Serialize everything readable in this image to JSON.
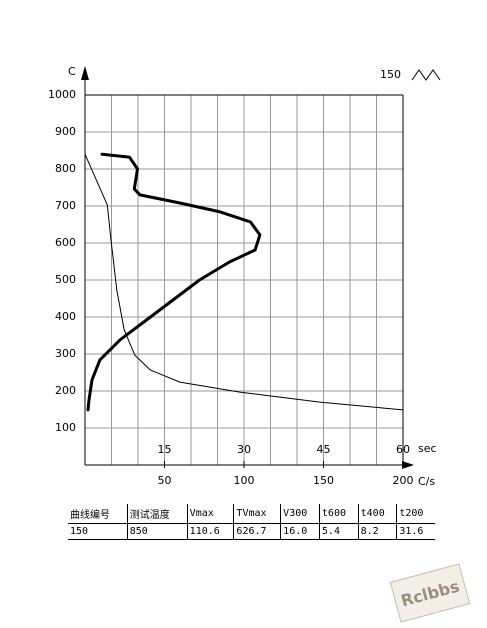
{
  "chart_data": {
    "type": "line",
    "y_label": "C",
    "x_label": "sec",
    "x2_label": "C/s",
    "ylim": [
      0,
      1000
    ],
    "yticks": [
      100,
      200,
      300,
      400,
      500,
      600,
      700,
      800,
      900,
      1000
    ],
    "xlim": [
      0,
      60
    ],
    "xticks": [
      15,
      30,
      45,
      60
    ],
    "x2lim": [
      0,
      200
    ],
    "x2ticks": [
      50,
      100,
      150,
      200
    ],
    "grid": true,
    "series": [
      {
        "name": "150",
        "color": "#000000",
        "width": 1,
        "x": [
          0,
          2.1,
          4.2,
          4.9,
          6,
          7.4,
          9.4,
          12.3,
          17.9,
          29.2,
          44.3,
          60
        ],
        "values": [
          840,
          772,
          703,
          608,
          473,
          365,
          297,
          257,
          224,
          197,
          170,
          149
        ]
      },
      {
        "color": "#000000",
        "width": 3,
        "axis": "x2",
        "x": [
          10.7,
          28,
          33,
          31,
          34.6,
          59.7,
          85,
          104,
          110,
          107,
          91,
          72,
          47,
          22,
          9.4,
          4.4,
          2.5,
          1.9
        ],
        "values": [
          840,
          832,
          800,
          746,
          730,
          708,
          684,
          657,
          622,
          581,
          549,
          500,
          419,
          338,
          284,
          230,
          176,
          149
        ]
      }
    ]
  },
  "table": {
    "headers": [
      "曲线编号",
      "测试温度",
      "Vmax",
      "TVmax",
      "V300",
      "t600",
      "t400",
      "t200"
    ],
    "rows": [
      [
        "150",
        "850",
        "110.6",
        "626.7",
        "16.0",
        "5.4",
        "8.2",
        "31.6"
      ]
    ]
  },
  "watermark": "Rclbbs"
}
